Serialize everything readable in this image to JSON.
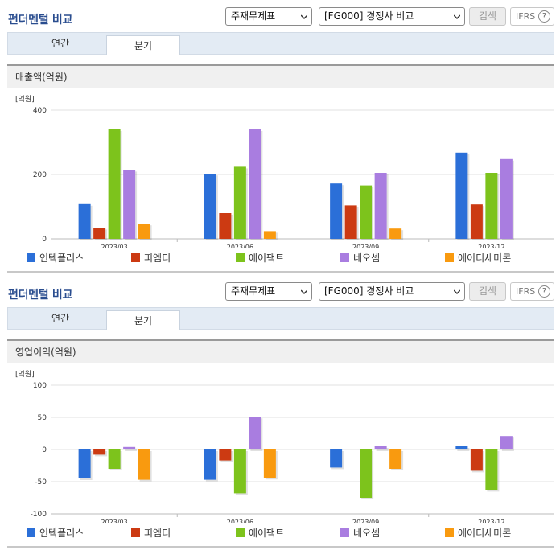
{
  "panels": [
    {
      "title": "펀더멘털 비교",
      "select1": "주재무제표",
      "select2": "[FG000] 경쟁사 비교",
      "search_label": "검색",
      "ifrs_label": "IFRS",
      "help_label": "?",
      "tabs": [
        "연간",
        "분기"
      ],
      "active_tab": "분기",
      "metric_label": "매출액(억원)"
    },
    {
      "title": "펀더멘털 비교",
      "select1": "주재무제표",
      "select2": "[FG000] 경쟁사 비교",
      "search_label": "검색",
      "ifrs_label": "IFRS",
      "help_label": "?",
      "tabs": [
        "연간",
        "분기"
      ],
      "active_tab": "분기",
      "metric_label": "영업이익(억원)"
    }
  ],
  "chart_data": [
    {
      "type": "bar",
      "unit_label": "[억원]",
      "categories": [
        "2023/03",
        "2023/06",
        "2023/09",
        "2023/12"
      ],
      "ylim": [
        0,
        400
      ],
      "yticks": [
        0,
        200,
        400
      ],
      "grid": true,
      "legend_position": "bottom",
      "series": [
        {
          "name": "인텍플러스",
          "color": "#2b6fd8",
          "values": [
            108,
            202,
            172,
            268
          ]
        },
        {
          "name": "피엠티",
          "color": "#cc3a12",
          "values": [
            34,
            80,
            104,
            107
          ]
        },
        {
          "name": "에이팩트",
          "color": "#7dc31c",
          "values": [
            340,
            224,
            166,
            205
          ]
        },
        {
          "name": "네오셈",
          "color": "#a97de0",
          "values": [
            214,
            340,
            205,
            248
          ]
        },
        {
          "name": "에이티세미콘",
          "color": "#f99a0f",
          "values": [
            47,
            24,
            32,
            null
          ]
        }
      ]
    },
    {
      "type": "bar",
      "unit_label": "[억원]",
      "categories": [
        "2023/03",
        "2023/06",
        "2023/09",
        "2023/12"
      ],
      "ylim": [
        -100,
        100
      ],
      "yticks": [
        -100,
        -50,
        0,
        50,
        100
      ],
      "grid": true,
      "legend_position": "bottom",
      "series": [
        {
          "name": "인텍플러스",
          "color": "#2b6fd8",
          "values": [
            -45,
            -47,
            -28,
            5
          ]
        },
        {
          "name": "피엠티",
          "color": "#cc3a12",
          "values": [
            -8,
            -17,
            null,
            -33
          ]
        },
        {
          "name": "에이팩트",
          "color": "#7dc31c",
          "values": [
            -30,
            -68,
            -75,
            -63
          ]
        },
        {
          "name": "네오셈",
          "color": "#a97de0",
          "values": [
            4,
            51,
            5,
            21
          ]
        },
        {
          "name": "에이티세미콘",
          "color": "#f99a0f",
          "values": [
            -47,
            -44,
            -30,
            null
          ]
        }
      ]
    }
  ]
}
